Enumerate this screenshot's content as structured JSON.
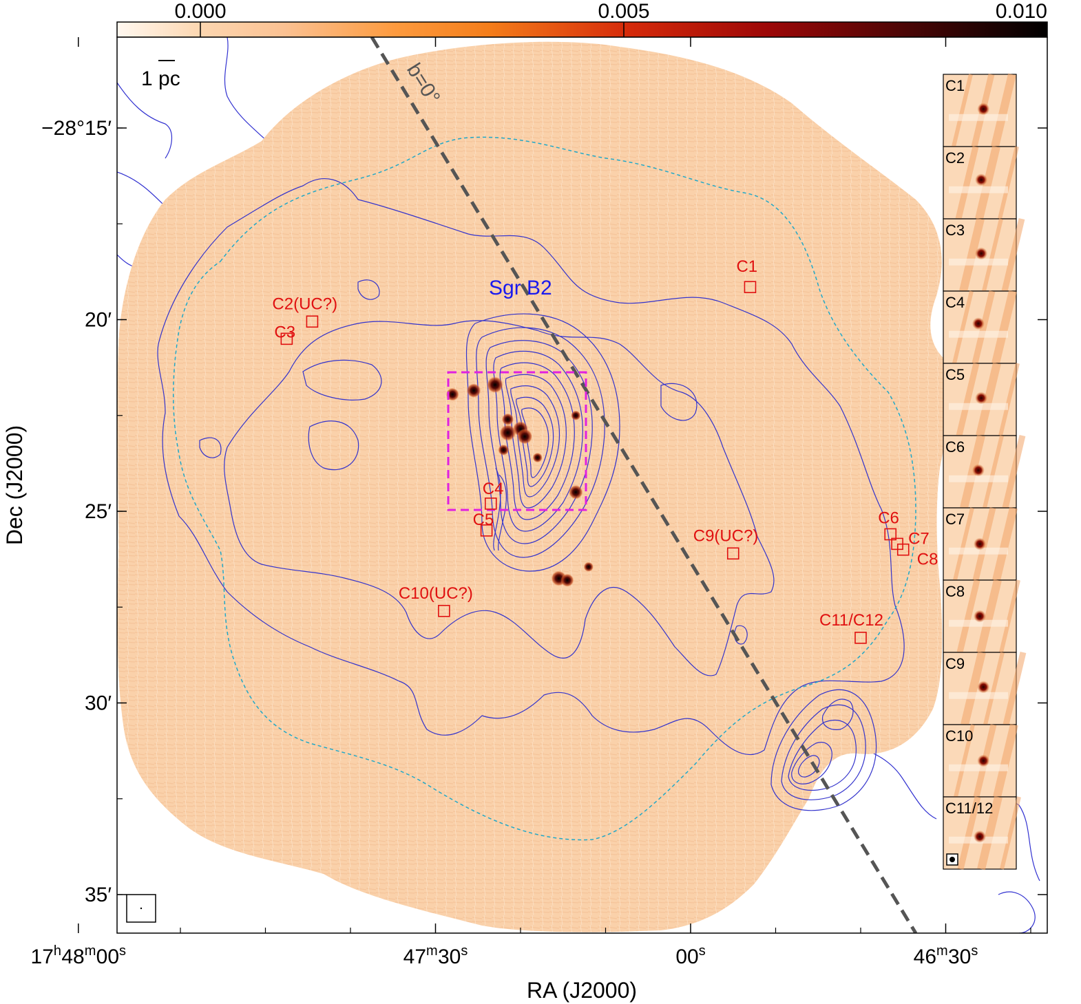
{
  "chart_data": {
    "type": "image",
    "xlabel": "RA (J2000)",
    "ylabel": "Dec (J2000)",
    "colorbar": {
      "ticks": [
        "0.000",
        "0.005",
        "0.010"
      ],
      "range": [
        -0.001,
        0.01
      ],
      "colormap": "orange-red-black"
    },
    "x_ticks": [
      {
        "ra_sec": 72,
        "label_main": "17",
        "sup1": "h",
        "label_mid": "48",
        "sup2": "m",
        "label_end": "00",
        "sup3": "s"
      },
      {
        "ra_sec": 30,
        "label_main": "",
        "sup1": "",
        "label_mid": "47",
        "sup2": "m",
        "label_end": "30",
        "sup3": "s"
      },
      {
        "ra_sec": 0,
        "label_main": "",
        "sup1": "",
        "label_mid": "",
        "sup2": "",
        "label_end": "00",
        "sup3": "s"
      },
      {
        "ra_sec": -30,
        "label_main": "",
        "sup1": "",
        "label_mid": "46",
        "sup2": "m",
        "label_end": "30",
        "sup3": "s"
      }
    ],
    "y_ticks": [
      {
        "dec_arcmin": -15,
        "label": "−28°15′"
      },
      {
        "dec_arcmin": -20,
        "label": "20′"
      },
      {
        "dec_arcmin": -25,
        "label": "25′"
      },
      {
        "dec_arcmin": -30,
        "label": "30′"
      },
      {
        "dec_arcmin": -35,
        "label": "35′"
      }
    ],
    "scale_bar": "1 pc",
    "galactic_plane_label": "b=0°",
    "region_label": "Sgr B2",
    "sources": [
      {
        "name": "C1",
        "ra": -7.0,
        "dec": -19.15
      },
      {
        "name": "C2(UC?)",
        "ra": 44.5,
        "dec": -20.05
      },
      {
        "name": "C3",
        "ra": 47.5,
        "dec": -20.5
      },
      {
        "name": "C4",
        "ra": 23.5,
        "dec": -24.8
      },
      {
        "name": "C5",
        "ra": 24.0,
        "dec": -25.5
      },
      {
        "name": "C6",
        "ra": -23.5,
        "dec": -25.6
      },
      {
        "name": "C7",
        "ra": -24.3,
        "dec": -25.85
      },
      {
        "name": "C8",
        "ra": -25.0,
        "dec": -26.0
      },
      {
        "name": "C9(UC?)",
        "ra": -5.0,
        "dec": -26.1
      },
      {
        "name": "C10(UC?)",
        "ra": 29.0,
        "dec": -27.6
      },
      {
        "name": "C11/C12",
        "ra": -20.0,
        "dec": -28.3
      }
    ],
    "insets": [
      "C1",
      "C2",
      "C3",
      "C4",
      "C5",
      "C6",
      "C7",
      "C8",
      "C9",
      "C10",
      "C11/12"
    ],
    "bright_sources": [
      {
        "ra": 23.0,
        "dec": -21.7,
        "flux": 0.01
      },
      {
        "ra": 25.5,
        "dec": -21.85,
        "flux": 0.008
      },
      {
        "ra": 28.0,
        "dec": -21.95,
        "flux": 0.007
      },
      {
        "ra": 21.5,
        "dec": -22.6,
        "flux": 0.006
      },
      {
        "ra": 20.0,
        "dec": -22.85,
        "flux": 0.009
      },
      {
        "ra": 21.5,
        "dec": -22.95,
        "flux": 0.01
      },
      {
        "ra": 19.5,
        "dec": -23.05,
        "flux": 0.009
      },
      {
        "ra": 22.0,
        "dec": -23.4,
        "flux": 0.005
      },
      {
        "ra": 18.0,
        "dec": -23.6,
        "flux": 0.004
      },
      {
        "ra": 13.5,
        "dec": -24.5,
        "flux": 0.008
      },
      {
        "ra": 13.5,
        "dec": -22.5,
        "flux": 0.004
      },
      {
        "ra": 15.5,
        "dec": -26.75,
        "flux": 0.009
      },
      {
        "ra": 14.5,
        "dec": -26.8,
        "flux": 0.007
      },
      {
        "ra": 12.0,
        "dec": -26.45,
        "flux": 0.004
      }
    ]
  }
}
